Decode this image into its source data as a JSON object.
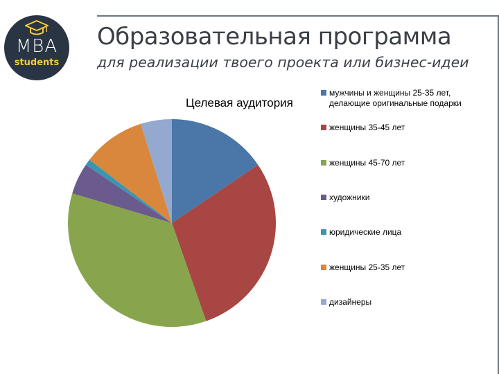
{
  "header": {
    "logo_main": "MBA",
    "logo_sub": "students",
    "title": "Образовательная программа",
    "subtitle": "для реализации твоего проекта или бизнес-идеи"
  },
  "chart_data": {
    "type": "pie",
    "title": "Целевая аудитория",
    "legend_position": "right",
    "series": [
      {
        "name": "мужчины и женщины 25-35 лет, делающие оригинальные подарки",
        "value": 16,
        "color": "#4a76a8"
      },
      {
        "name": "женщины 35-45 лет",
        "value": 30,
        "color": "#a84643"
      },
      {
        "name": "женщины 45-70 лет",
        "value": 36,
        "color": "#88a54d"
      },
      {
        "name": "художники",
        "value": 5,
        "color": "#6b5a8c"
      },
      {
        "name": "юридические лица",
        "value": 1,
        "color": "#3c95b0"
      },
      {
        "name": "женщины 25-35 лет",
        "value": 10,
        "color": "#d9873c"
      },
      {
        "name": "дизайнеры",
        "value": 5,
        "color": "#93a9d0"
      }
    ]
  }
}
